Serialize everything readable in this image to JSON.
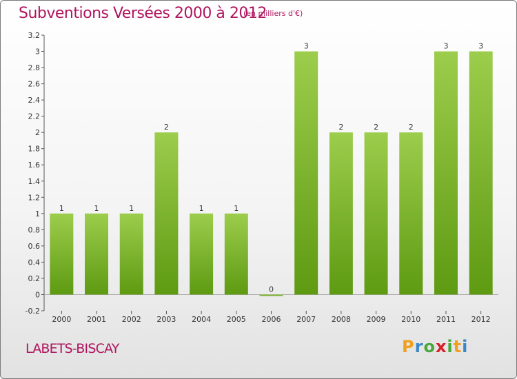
{
  "chart_data": {
    "type": "bar",
    "title": "Subventions Versées 2000 à 2012",
    "subtitle": "(en milliers d'€)",
    "categories": [
      "2000",
      "2001",
      "2002",
      "2003",
      "2004",
      "2005",
      "2006",
      "2007",
      "2008",
      "2009",
      "2010",
      "2011",
      "2012"
    ],
    "values": [
      1,
      1,
      1,
      2,
      1,
      1,
      0,
      3,
      2,
      2,
      2,
      3,
      3
    ],
    "data_labels": [
      "1",
      "1",
      "1",
      "2",
      "1",
      "1",
      "0",
      "3",
      "2",
      "2",
      "2",
      "3",
      "3"
    ],
    "ylim": [
      -0.2,
      3.2
    ],
    "yticks": [
      -0.2,
      0,
      0.2,
      0.4,
      0.6,
      0.8,
      1,
      1.2,
      1.4,
      1.6,
      1.8,
      2,
      2.2,
      2.4,
      2.6,
      2.8,
      3,
      3.2
    ],
    "ytick_labels": [
      "-0.2",
      "0",
      "0.2",
      "0.4",
      "0.6",
      "0.8",
      "1",
      "1.2",
      "1.4",
      "1.6",
      "1.8",
      "2",
      "2.2",
      "2.4",
      "2.6",
      "2.8",
      "3",
      "3.2"
    ],
    "xlabel": "",
    "ylabel": "",
    "bar_color_top": "#9ccd4c",
    "bar_color_bottom": "#5e9a12",
    "grid": false
  },
  "commune": "LABETS-BISCAY",
  "logo": {
    "letters": [
      "P",
      "r",
      "o",
      "x",
      "i",
      "t",
      "i"
    ],
    "colors": [
      "#f0a020",
      "#3a86c8",
      "#4aa83c",
      "#d8202a",
      "#4aa83c",
      "#f0a020",
      "#3a86c8"
    ]
  },
  "colors": {
    "title": "#b0155f",
    "axis": "#333333"
  }
}
